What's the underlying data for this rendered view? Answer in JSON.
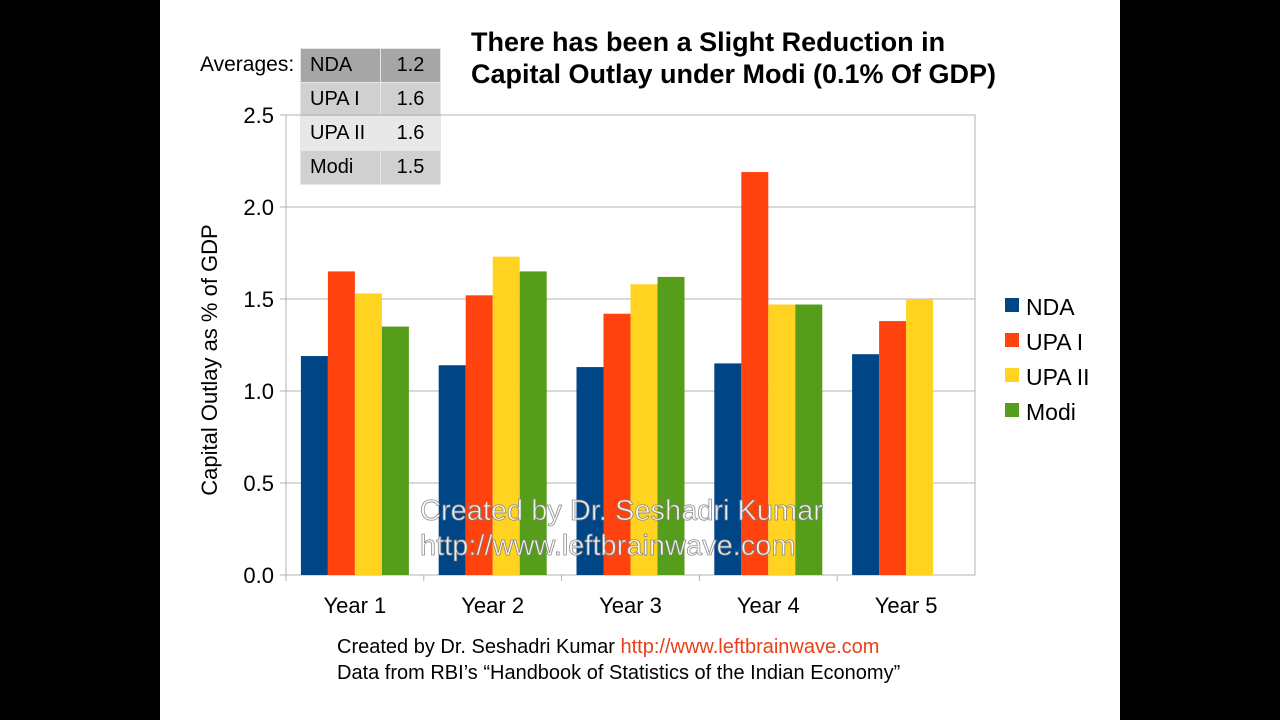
{
  "title_line1": "There has been a Slight Reduction in",
  "title_line2": "Capital Outlay under Modi (0.1% Of GDP)",
  "averages": {
    "label": "Averages:",
    "rows": [
      {
        "name": "NDA",
        "value": "1.2"
      },
      {
        "name": "UPA I",
        "value": "1.6"
      },
      {
        "name": "UPA II",
        "value": "1.6"
      },
      {
        "name": "Modi",
        "value": "1.5"
      }
    ]
  },
  "watermark_line1": "Created by Dr. Seshadri Kumar",
  "watermark_line2": "http://www.leftbrainwave.com",
  "footer": {
    "credit": "Created by Dr. Seshadri Kumar ",
    "link": "http://www.leftbrainwave.com",
    "source": "Data from RBI’s “Handbook of Statistics of the Indian Economy”"
  },
  "chart_data": {
    "type": "bar",
    "title": "There has been a Slight Reduction in Capital Outlay under Modi (0.1% Of GDP)",
    "ylabel": "Capital Outlay as % of GDP",
    "xlabel": "",
    "ylim": [
      0,
      2.5
    ],
    "yticks": [
      "0.0",
      "0.5",
      "1.0",
      "1.5",
      "2.0",
      "2.5"
    ],
    "grid": true,
    "legend_position": "right",
    "categories": [
      "Year 1",
      "Year 2",
      "Year 3",
      "Year 4",
      "Year 5"
    ],
    "series": [
      {
        "name": "NDA",
        "color": "#004586",
        "values": [
          1.19,
          1.14,
          1.13,
          1.15,
          1.2
        ]
      },
      {
        "name": "UPA I",
        "color": "#ff420e",
        "values": [
          1.65,
          1.52,
          1.42,
          2.19,
          1.38
        ]
      },
      {
        "name": "UPA II",
        "color": "#ffd320",
        "values": [
          1.53,
          1.73,
          1.58,
          1.47,
          1.5
        ]
      },
      {
        "name": "Modi",
        "color": "#579d1c",
        "values": [
          1.35,
          1.65,
          1.62,
          1.47,
          null
        ]
      }
    ]
  }
}
